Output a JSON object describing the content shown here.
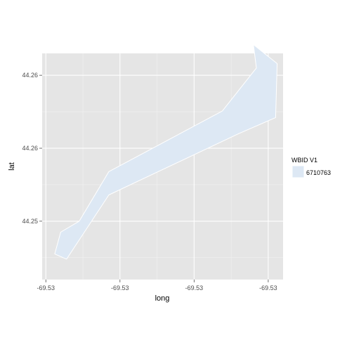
{
  "chart_data": {
    "type": "polygon",
    "xlabel": "long",
    "ylabel": "lat",
    "x_tick_labels": [
      "-69.53",
      "-69.53",
      "-69.53",
      "-69.53"
    ],
    "y_tick_labels": [
      "44.25",
      "44.26",
      "44.26"
    ],
    "x_ticks": [
      0,
      1,
      2,
      3
    ],
    "y_ticks": [
      1,
      2,
      3
    ],
    "xlim": [
      -0.05,
      3.2
    ],
    "ylim": [
      0.2,
      3.3
    ],
    "grid": true,
    "legend": {
      "title": "WBID V1",
      "position": "right",
      "entries": [
        {
          "label": "6710763",
          "color": "#dde8f4"
        }
      ]
    },
    "fill_color": "#dde8f4",
    "outline_color": "#ffffff",
    "panel_background": "#e5e5e5",
    "polygon": [
      [
        0.12,
        0.55
      ],
      [
        0.28,
        0.48
      ],
      [
        0.85,
        1.36
      ],
      [
        2.6,
        2.2
      ],
      [
        3.1,
        2.42
      ],
      [
        3.12,
        3.16
      ],
      [
        2.8,
        3.42
      ],
      [
        2.84,
        3.1
      ],
      [
        2.38,
        2.51
      ],
      [
        0.85,
        1.68
      ],
      [
        0.45,
        1.0
      ],
      [
        0.2,
        0.85
      ]
    ]
  }
}
